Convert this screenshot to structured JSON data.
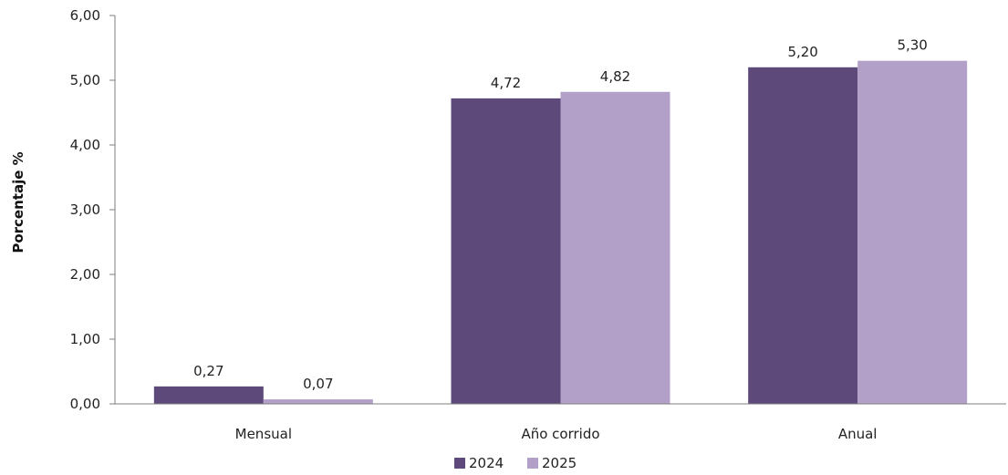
{
  "chart_data": {
    "type": "bar",
    "title": "",
    "xlabel": "",
    "ylabel": "Porcentaje %",
    "categories": [
      "Mensual",
      "Año corrido",
      "Anual"
    ],
    "series": [
      {
        "name": "2024",
        "color": "#5e4a7a",
        "values": [
          0.27,
          4.72,
          5.2
        ],
        "labels": [
          "0,27",
          "4,72",
          "5,20"
        ]
      },
      {
        "name": "2025",
        "color": "#b3a0c8",
        "values": [
          0.07,
          4.82,
          5.3
        ],
        "labels": [
          "0,07",
          "4,82",
          "5,30"
        ]
      }
    ],
    "ylim": [
      0,
      6
    ],
    "yticks": [
      0,
      1,
      2,
      3,
      4,
      5,
      6
    ],
    "ytick_labels": [
      "0,00",
      "1,00",
      "2,00",
      "3,00",
      "4,00",
      "5,00",
      "6,00"
    ],
    "grid": false,
    "legend_position": "bottom-center"
  }
}
